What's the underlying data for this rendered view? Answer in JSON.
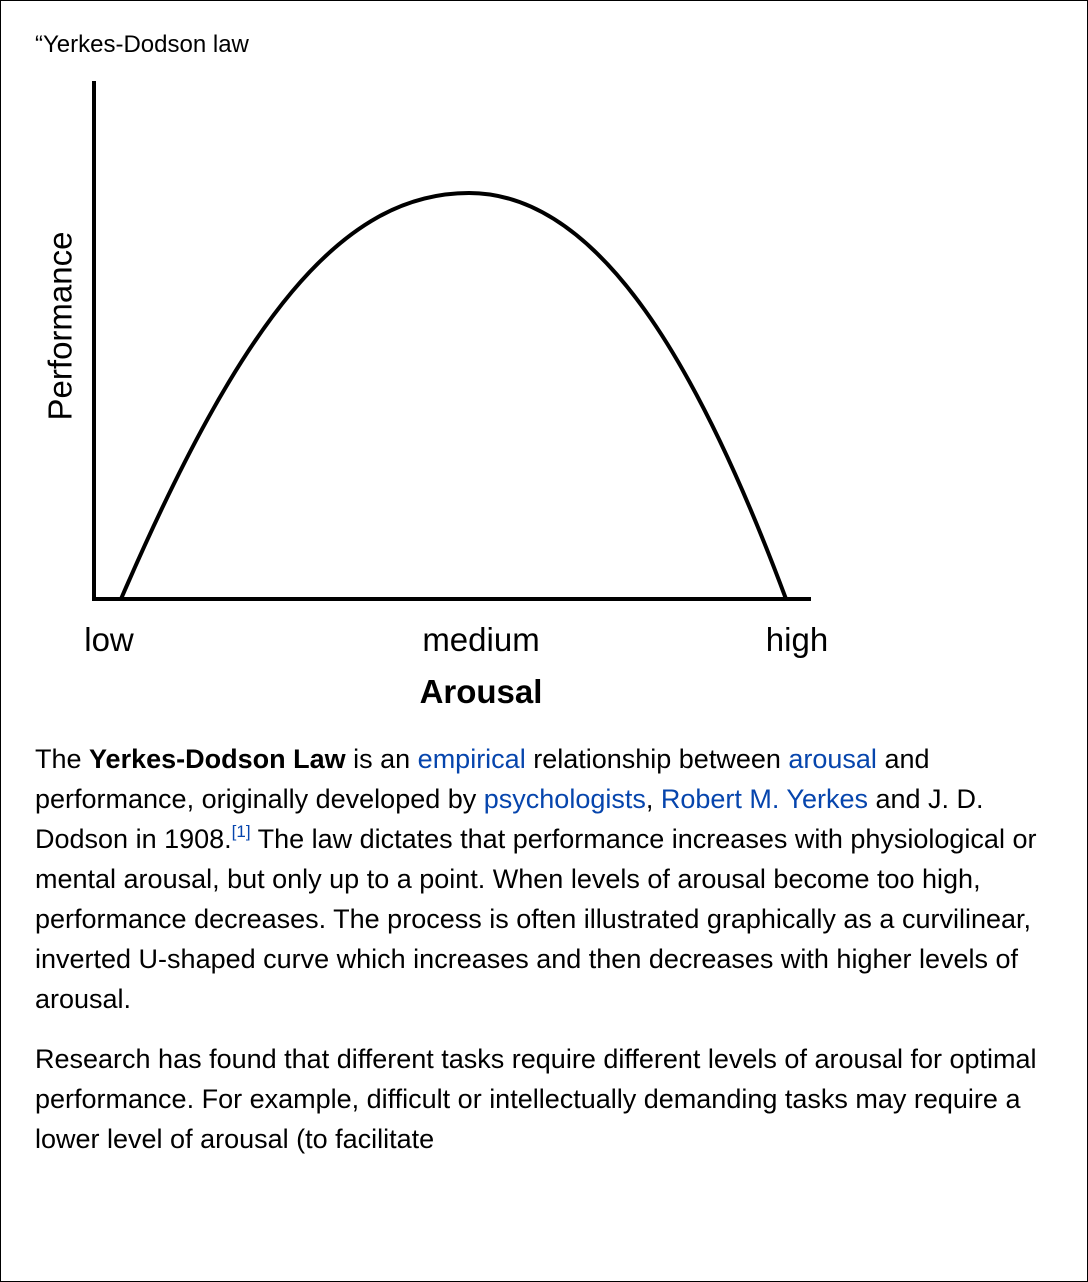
{
  "caption": "“Yerkes-Dodson law",
  "diagram": {
    "y_label": "Performance",
    "x_labels": [
      "low",
      "medium",
      "high"
    ],
    "x_title": "Arousal"
  },
  "paragraphs": [
    [
      {
        "text": "The "
      },
      {
        "text": "Yerkes-Dodson Law",
        "bold": true
      },
      {
        "text": " is an "
      },
      {
        "text": "empirical",
        "link": true
      },
      {
        "text": " relationship between "
      },
      {
        "text": "arousal",
        "link": true
      },
      {
        "text": " and performance, originally developed by "
      },
      {
        "text": "psychologists",
        "link": true
      },
      {
        "text": ", "
      },
      {
        "text": "Robert M. Yerkes",
        "link": true
      },
      {
        "text": " and J. D. Dodson in 1908."
      },
      {
        "text": "[1]",
        "link": true,
        "sup": true
      },
      {
        "text": " The law dictates that performance increases with physiological or mental arousal, but only up to a point. When levels of arousal become too high, performance decreases. The process is often illustrated graphically as a curvilinear, inverted U-shaped curve which increases and then decreases with higher levels of arousal."
      }
    ],
    [
      {
        "text": "Research has found that different tasks require different levels of arousal for optimal performance. For example, difficult or intellectually demanding tasks may require a lower level of arousal (to facilitate"
      }
    ]
  ]
}
